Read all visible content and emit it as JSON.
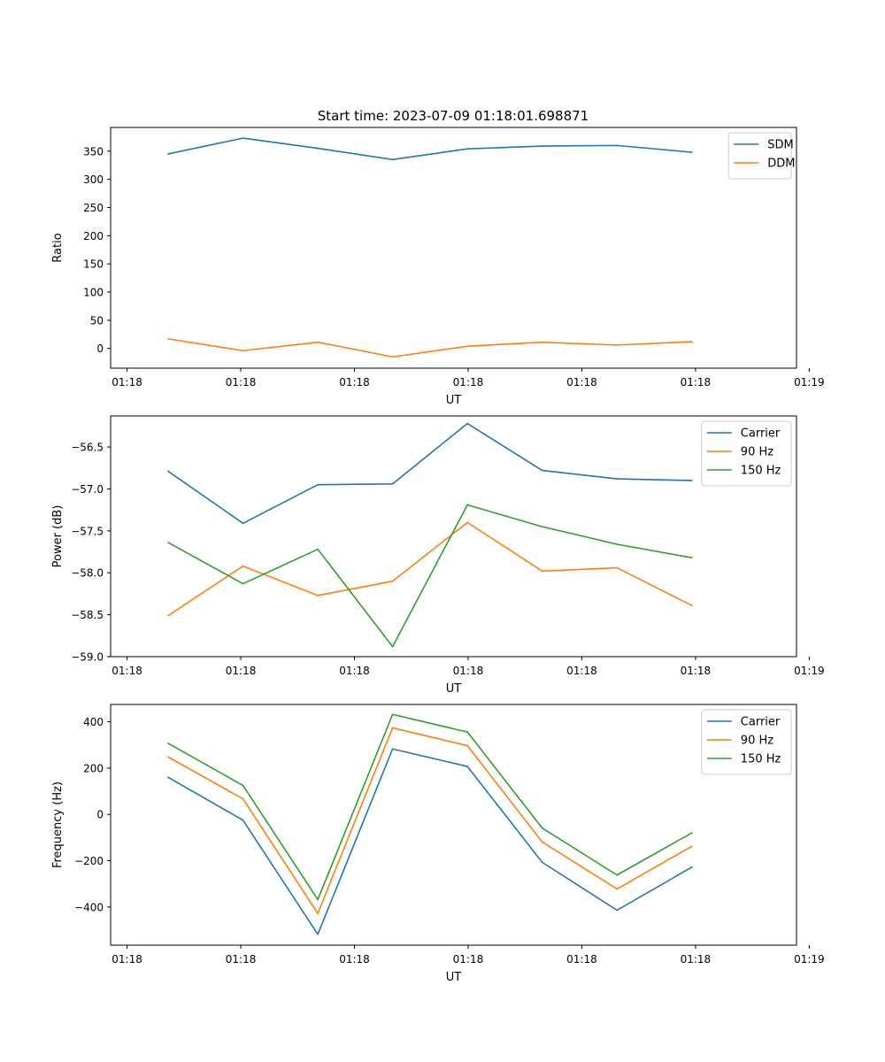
{
  "figure": {
    "title": "Start time: 2023-07-09 01:18:01.698871",
    "colors": {
      "series1": "#1f77b4",
      "series2": "#ff7f0e",
      "series3": "#2ca02c"
    }
  },
  "chart_data": [
    {
      "type": "line",
      "title": "Start time: 2023-07-09 01:18:01.698871",
      "xlabel": "UT",
      "ylabel": "Ratio",
      "x": [
        1,
        2,
        3,
        4,
        5,
        6,
        7,
        8
      ],
      "xlim": [
        0.23,
        9.4
      ],
      "xticks": [
        0.45,
        1.97,
        3.49,
        5.01,
        6.53,
        8.05,
        9.57
      ],
      "xtick_labels": [
        "01:18",
        "01:18",
        "01:18",
        "01:18",
        "01:18",
        "01:18",
        "01:19"
      ],
      "ylim": [
        -35,
        392
      ],
      "yticks": [
        0,
        50,
        100,
        150,
        200,
        250,
        300,
        350
      ],
      "ytick_labels": [
        "0",
        "50",
        "100",
        "150",
        "200",
        "250",
        "300",
        "350"
      ],
      "legend": "top-right",
      "series": [
        {
          "name": "SDM",
          "color": "#1f77b4",
          "values": [
            345,
            373,
            355,
            335,
            354,
            359,
            360,
            348
          ]
        },
        {
          "name": "DDM",
          "color": "#ff7f0e",
          "values": [
            17,
            -4,
            11,
            -15,
            4,
            11,
            6,
            12
          ]
        }
      ]
    },
    {
      "type": "line",
      "title": "",
      "xlabel": "UT",
      "ylabel": "Power (dB)",
      "x": [
        1,
        2,
        3,
        4,
        5,
        6,
        7,
        8
      ],
      "xlim": [
        0.23,
        9.4
      ],
      "xticks": [
        0.45,
        1.97,
        3.49,
        5.01,
        6.53,
        8.05,
        9.57
      ],
      "xtick_labels": [
        "01:18",
        "01:18",
        "01:18",
        "01:18",
        "01:18",
        "01:18",
        "01:19"
      ],
      "ylim": [
        -59.0,
        -56.13
      ],
      "yticks": [
        -59.0,
        -58.5,
        -58.0,
        -57.5,
        -57.0,
        -56.5
      ],
      "ytick_labels": [
        "−59.0",
        "−58.5",
        "−58.0",
        "−57.5",
        "−57.0",
        "−56.5"
      ],
      "legend": "top-right",
      "series": [
        {
          "name": "Carrier",
          "color": "#1f77b4",
          "values": [
            -56.79,
            -57.41,
            -56.95,
            -56.94,
            -56.22,
            -56.78,
            -56.88,
            -56.9
          ]
        },
        {
          "name": "90 Hz",
          "color": "#ff7f0e",
          "values": [
            -58.51,
            -57.92,
            -58.27,
            -58.1,
            -57.4,
            -57.98,
            -57.94,
            -58.39
          ]
        },
        {
          "name": "150 Hz",
          "color": "#2ca02c",
          "values": [
            -57.64,
            -58.13,
            -57.72,
            -58.88,
            -57.19,
            -57.45,
            -57.66,
            -57.82
          ]
        }
      ]
    },
    {
      "type": "line",
      "title": "",
      "xlabel": "UT",
      "ylabel": "Frequency (Hz)",
      "x": [
        1,
        2,
        3,
        4,
        5,
        6,
        7,
        8
      ],
      "xlim": [
        0.23,
        9.4
      ],
      "xticks": [
        0.45,
        1.97,
        3.49,
        5.01,
        6.53,
        8.05,
        9.57
      ],
      "xtick_labels": [
        "01:18",
        "01:18",
        "01:18",
        "01:18",
        "01:18",
        "01:18",
        "01:19"
      ],
      "ylim": [
        -565,
        475
      ],
      "yticks": [
        -400,
        -200,
        0,
        200,
        400
      ],
      "ytick_labels": [
        "−400",
        "−200",
        "0",
        "200",
        "400"
      ],
      "legend": "top-right",
      "series": [
        {
          "name": "Carrier",
          "color": "#1f77b4",
          "values": [
            160,
            -25,
            -518,
            283,
            207,
            -207,
            -414,
            -228
          ]
        },
        {
          "name": "90 Hz",
          "color": "#ff7f0e",
          "values": [
            248,
            67,
            -428,
            374,
            297,
            -119,
            -322,
            -138
          ]
        },
        {
          "name": "150 Hz",
          "color": "#2ca02c",
          "values": [
            307,
            125,
            -368,
            432,
            356,
            -59,
            -262,
            -80
          ]
        }
      ]
    }
  ]
}
